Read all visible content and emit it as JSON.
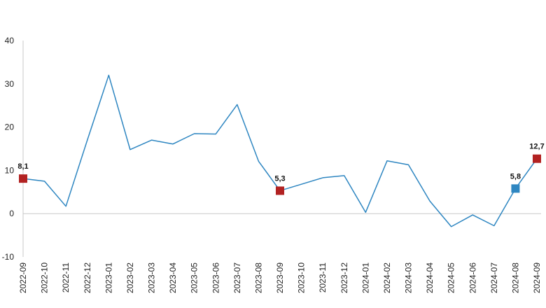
{
  "chart_data": {
    "type": "line",
    "title": "",
    "xlabel": "",
    "ylabel": "",
    "categories": [
      "2022-09",
      "2022-10",
      "2022-11",
      "2022-12",
      "2023-01",
      "2023-02",
      "2023-03",
      "2023-04",
      "2023-05",
      "2023-06",
      "2023-07",
      "2023-08",
      "2023-09",
      "2023-10",
      "2023-11",
      "2023-12",
      "2024-01",
      "2024-02",
      "2024-03",
      "2024-04",
      "2024-05",
      "2024-06",
      "2024-07",
      "2024-08",
      "2024-09"
    ],
    "series": [
      {
        "values": [
          8.1,
          7.5,
          1.7,
          17.0,
          32.0,
          14.8,
          17.0,
          16.1,
          18.5,
          18.4,
          25.2,
          12.1,
          5.3,
          6.8,
          8.3,
          8.8,
          0.3,
          12.2,
          11.3,
          2.9,
          -3.0,
          -0.3,
          -2.8,
          5.8,
          12.7
        ],
        "color": "#2E86C1"
      }
    ],
    "ylim": [
      -10,
      40
    ],
    "yticks": [
      -10,
      0,
      10,
      20,
      30,
      40
    ],
    "grid": false,
    "legend": "none",
    "highlighted_points": [
      {
        "index": 0,
        "label": "8,1",
        "color": "#B22222"
      },
      {
        "index": 12,
        "label": "5,3",
        "color": "#B22222"
      },
      {
        "index": 23,
        "label": "5,8",
        "color": "#2E86C1"
      },
      {
        "index": 24,
        "label": "12,7",
        "color": "#B22222"
      }
    ],
    "colors": {
      "line": "#2E86C1",
      "axis": "#C8C8C8",
      "marker_red": "#B22222",
      "marker_blue": "#2E86C1"
    }
  }
}
